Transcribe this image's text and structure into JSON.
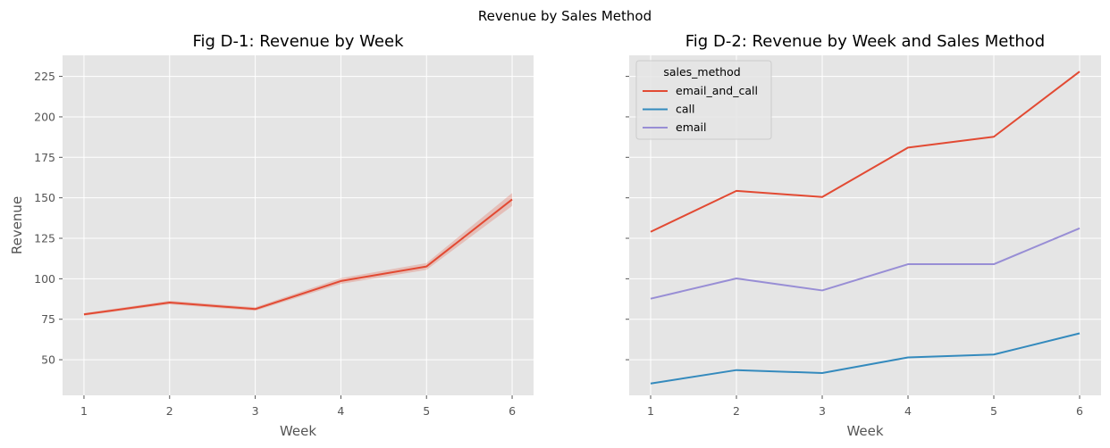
{
  "figure": {
    "suptitle": "Revenue by Sales Method"
  },
  "chart_data": [
    {
      "type": "line",
      "title": "Fig D-1: Revenue by Week",
      "xlabel": "Week",
      "ylabel": "Revenue",
      "x": [
        1,
        2,
        3,
        4,
        5,
        6
      ],
      "xlim": [
        0.75,
        6.25
      ],
      "ylim": [
        28,
        238
      ],
      "yticks": [
        50,
        75,
        100,
        125,
        150,
        175,
        200,
        225
      ],
      "grid": true,
      "series": [
        {
          "values": [
            78,
            85.3,
            81.3,
            98.6,
            107.6,
            149
          ],
          "ci_low": [
            77.2,
            84.2,
            80.2,
            96.8,
            105.5,
            145
          ],
          "ci_high": [
            78.8,
            86.4,
            82.4,
            100.4,
            109.7,
            153
          ],
          "color": "#E24A33"
        }
      ]
    },
    {
      "type": "line",
      "title": "Fig D-2: Revenue by Week and Sales Method",
      "xlabel": "Week",
      "ylabel": "",
      "x": [
        1,
        2,
        3,
        4,
        5,
        6
      ],
      "xlim": [
        0.75,
        6.25
      ],
      "ylim": [
        28,
        238
      ],
      "yticks": [
        50,
        75,
        100,
        125,
        150,
        175,
        200,
        225
      ],
      "grid": true,
      "legend": {
        "title": "sales_method",
        "placement": "upper-left"
      },
      "series": [
        {
          "name": "email_and_call",
          "values": [
            129,
            154.3,
            150.5,
            181,
            187.7,
            228
          ],
          "color": "#E24A33"
        },
        {
          "name": "call",
          "values": [
            35.3,
            43.6,
            41.8,
            51.4,
            53.2,
            66.3
          ],
          "color": "#348ABD"
        },
        {
          "name": "email",
          "values": [
            87.7,
            100.2,
            92.8,
            109,
            109,
            131.2
          ],
          "color": "#988ED5"
        }
      ]
    }
  ]
}
